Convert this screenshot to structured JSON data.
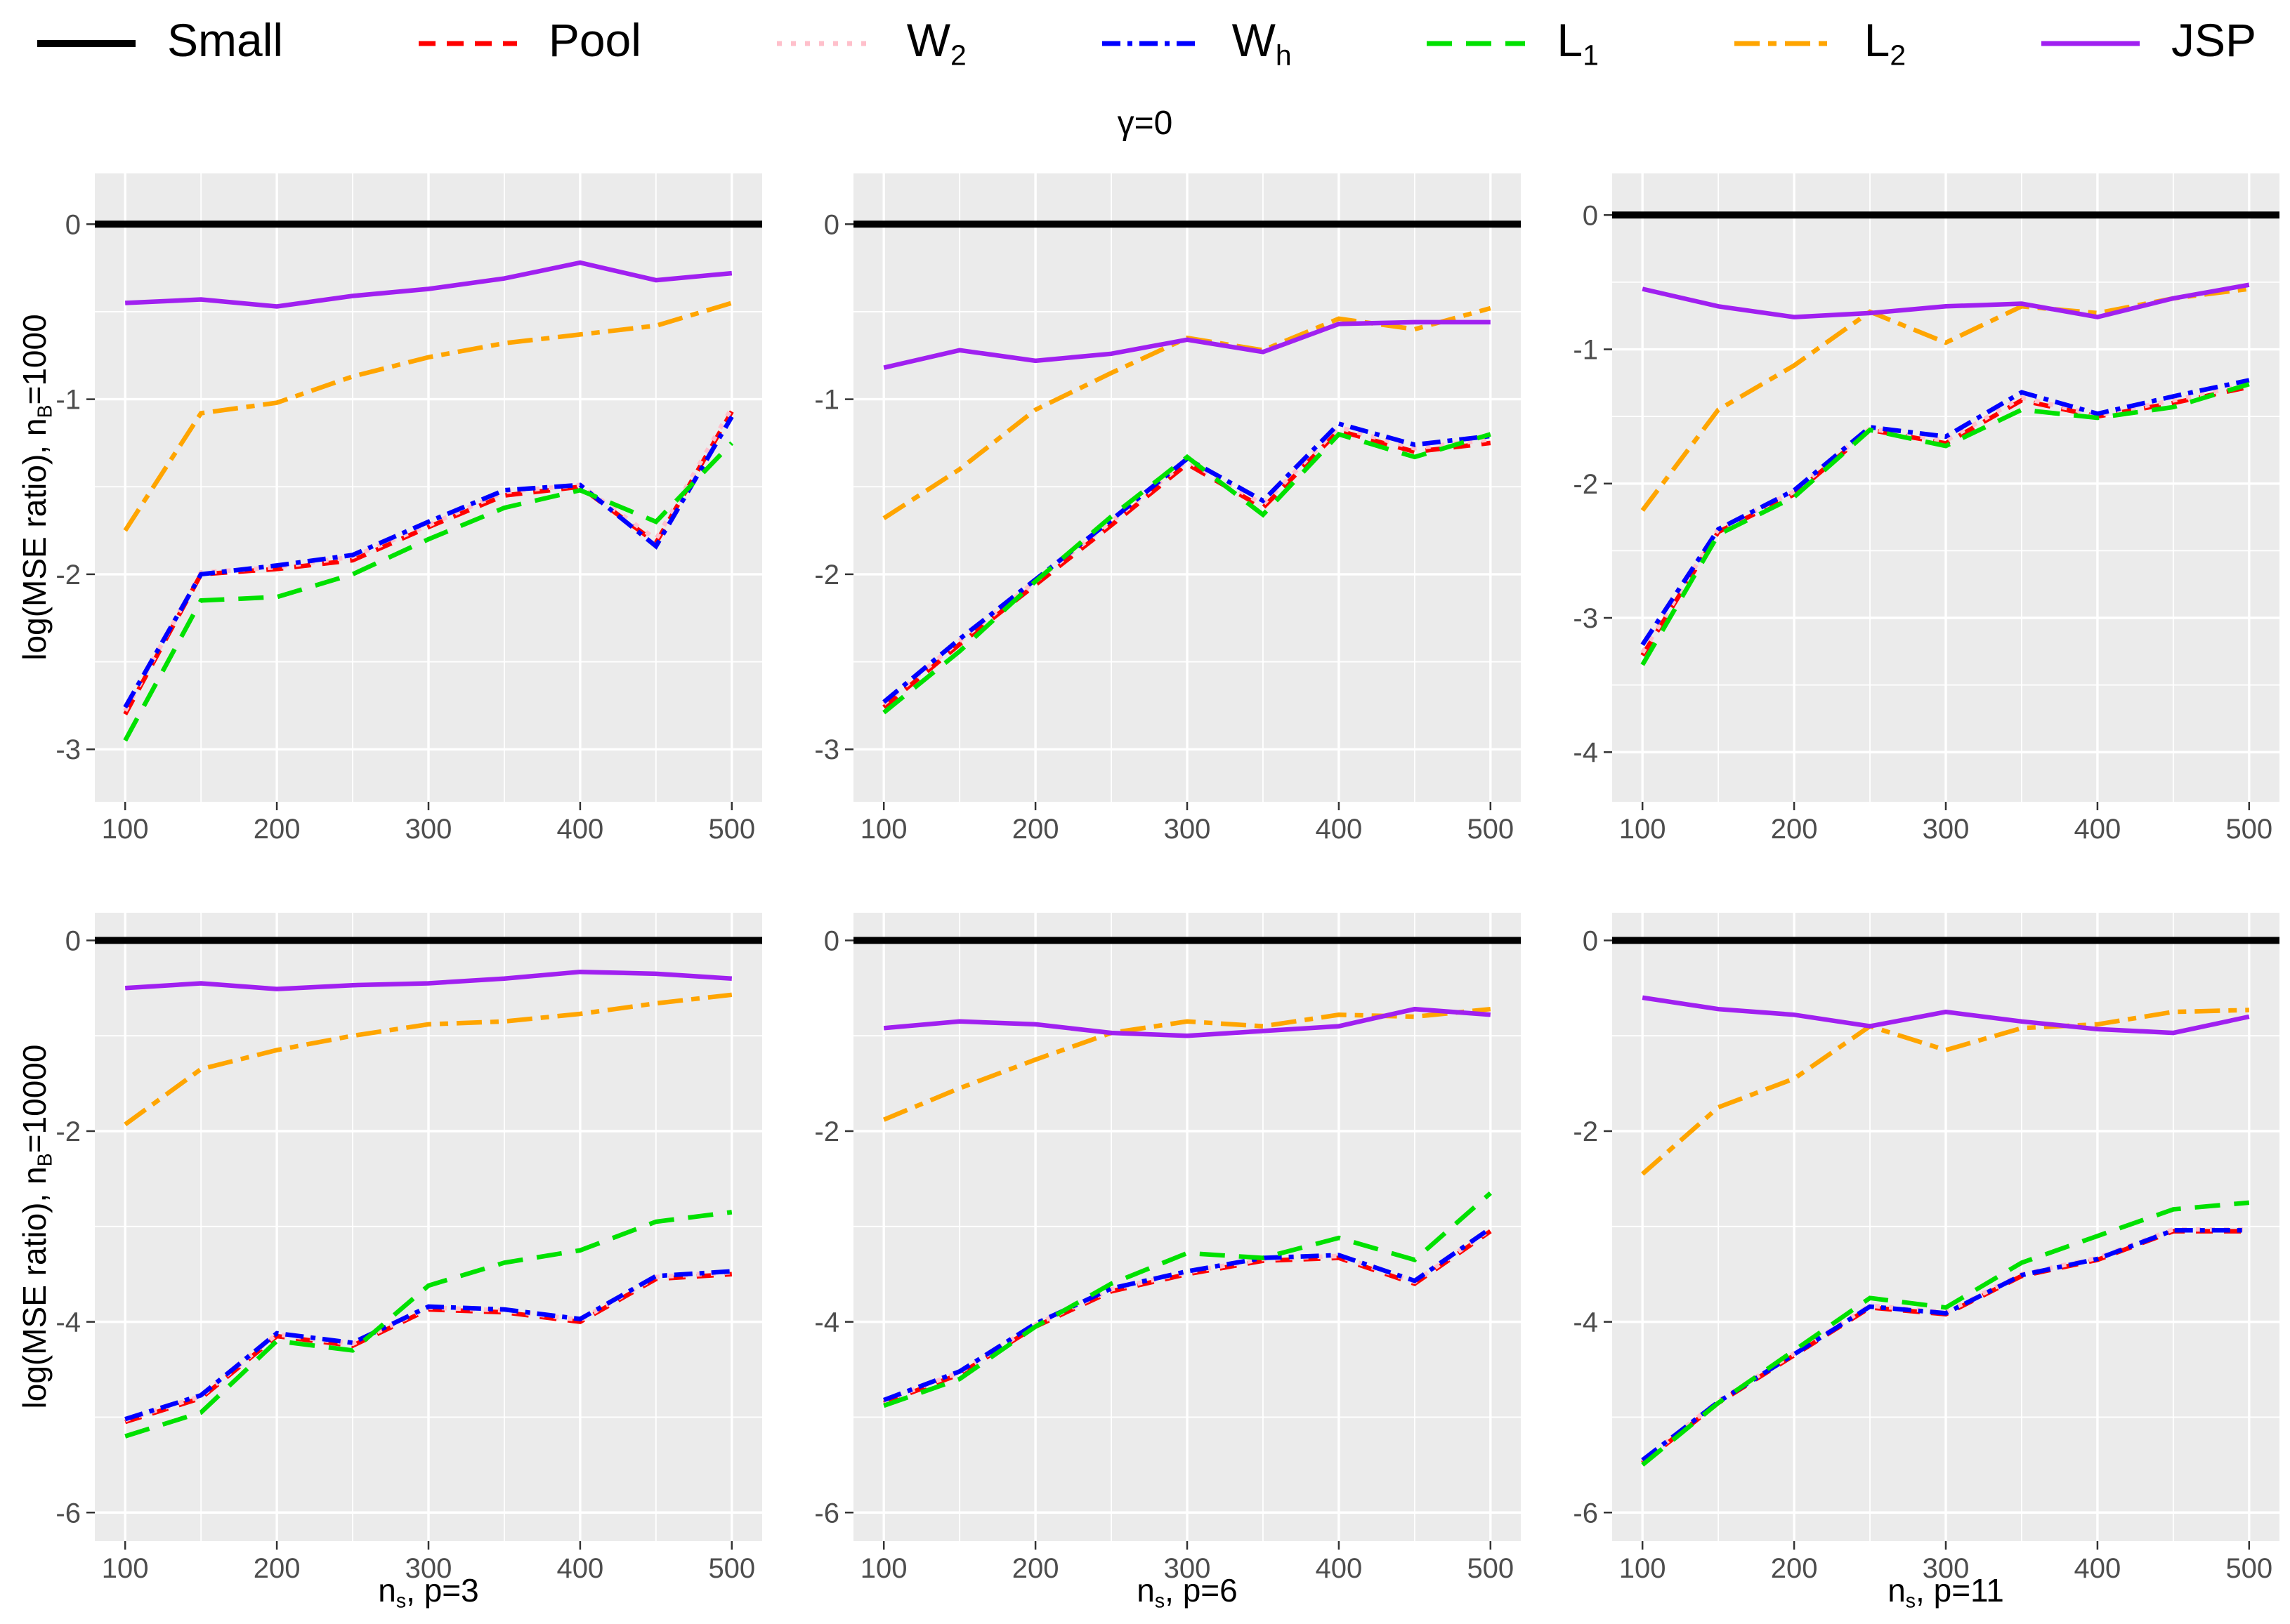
{
  "title": {
    "text": "γ=0"
  },
  "legend": {
    "items": [
      {
        "name": "Small",
        "label_main": "Small",
        "label_sub": "",
        "color": "#000000",
        "dash": "",
        "key_width": 10
      },
      {
        "name": "Pool",
        "label_main": "Pool",
        "label_sub": "",
        "color": "#FF0000",
        "dash": "24,16",
        "key_width": 7
      },
      {
        "name": "W2",
        "label_main": "W",
        "label_sub": "2",
        "color": "#FFC0CB",
        "dash": "7,13",
        "key_width": 7
      },
      {
        "name": "Wh",
        "label_main": "W",
        "label_sub": "h",
        "color": "#0000FF",
        "dash": "26,10,7,10",
        "key_width": 7
      },
      {
        "name": "L1",
        "label_main": "L",
        "label_sub": "1",
        "color": "#00E100",
        "dash": "36,20",
        "key_width": 7
      },
      {
        "name": "L2",
        "label_main": "L",
        "label_sub": "2",
        "color": "#FFA500",
        "dash": "36,12,12,12",
        "key_width": 7
      },
      {
        "name": "JSP",
        "label_main": "JSP",
        "label_sub": "",
        "color": "#A020F0",
        "dash": "",
        "key_width": 7
      }
    ]
  },
  "axes": {
    "row_titles": [
      {
        "prefix": "log(MSE ratio), n",
        "sub": "B",
        "suffix": "=1000"
      },
      {
        "prefix": "log(MSE ratio), n",
        "sub": "B",
        "suffix": "=10000"
      }
    ],
    "col_titles": [
      {
        "prefix": "n",
        "sub": "s",
        "suffix": ", p=3"
      },
      {
        "prefix": "n",
        "sub": "s",
        "suffix": ", p=6"
      },
      {
        "prefix": "n",
        "sub": "s",
        "suffix": ", p=11"
      }
    ]
  },
  "chart_data": {
    "type": "line",
    "x": [
      100,
      150,
      200,
      250,
      300,
      350,
      400,
      450,
      500
    ],
    "xlim": [
      80,
      520
    ],
    "xticks": [
      100,
      200,
      300,
      400,
      500
    ],
    "xminor": [
      150,
      250,
      350,
      450
    ],
    "series_styles": [
      {
        "name": "Small",
        "color": "#000000",
        "width": 10,
        "dash": "",
        "hline": true
      },
      {
        "name": "Pool",
        "color": "#FF0000",
        "width": 6.5,
        "dash": "24,16"
      },
      {
        "name": "W2",
        "color": "#FFC0CB",
        "width": 6.5,
        "dash": "7,13"
      },
      {
        "name": "Wh",
        "color": "#0000FF",
        "width": 6.5,
        "dash": "26,10,7,10"
      },
      {
        "name": "L1",
        "color": "#00E100",
        "width": 6.5,
        "dash": "36,20"
      },
      {
        "name": "L2",
        "color": "#FFA500",
        "width": 6.5,
        "dash": "36,12,12,12"
      },
      {
        "name": "JSP",
        "color": "#A020F0",
        "width": 6.5,
        "dash": ""
      }
    ],
    "facets": [
      {
        "row": 0,
        "col": 0,
        "facet_label": "p=3, nB=1000",
        "ylim": [
          0.29,
          -3.3
        ],
        "yticks": [
          0,
          -1,
          -2,
          -3
        ],
        "yminor": [
          -0.5,
          -1.5,
          -2.5
        ],
        "series": {
          "Small": [
            0,
            0,
            0,
            0,
            0,
            0,
            0,
            0,
            0
          ],
          "Pool": [
            -2.8,
            -2.0,
            -1.97,
            -1.92,
            -1.73,
            -1.55,
            -1.5,
            -1.82,
            -1.07
          ],
          "W2": [
            -2.78,
            -1.99,
            -1.96,
            -1.9,
            -1.72,
            -1.53,
            -1.49,
            -1.8,
            -1.05
          ],
          "Wh": [
            -2.76,
            -2.0,
            -1.95,
            -1.89,
            -1.7,
            -1.52,
            -1.49,
            -1.84,
            -1.1
          ],
          "L1": [
            -2.95,
            -2.15,
            -2.13,
            -2.0,
            -1.8,
            -1.62,
            -1.52,
            -1.7,
            -1.25
          ],
          "L2": [
            -1.75,
            -1.08,
            -1.02,
            -0.87,
            -0.76,
            -0.68,
            -0.63,
            -0.58,
            -0.45
          ],
          "JSP": [
            -0.45,
            -0.43,
            -0.47,
            -0.41,
            -0.37,
            -0.31,
            -0.22,
            -0.32,
            -0.28
          ]
        }
      },
      {
        "row": 0,
        "col": 1,
        "facet_label": "p=6, nB=1000",
        "ylim": [
          0.29,
          -3.3
        ],
        "yticks": [
          0,
          -1,
          -2,
          -3
        ],
        "yminor": [
          -0.5,
          -1.5,
          -2.5
        ],
        "series": {
          "Small": [
            0,
            0,
            0,
            0,
            0,
            0,
            0,
            0,
            0
          ],
          "Pool": [
            -2.76,
            -2.4,
            -2.06,
            -1.72,
            -1.37,
            -1.62,
            -1.18,
            -1.3,
            -1.25
          ],
          "W2": [
            -2.74,
            -2.38,
            -2.04,
            -1.7,
            -1.35,
            -1.6,
            -1.16,
            -1.28,
            -1.23
          ],
          "Wh": [
            -2.73,
            -2.37,
            -2.03,
            -1.69,
            -1.34,
            -1.58,
            -1.14,
            -1.26,
            -1.21
          ],
          "L1": [
            -2.79,
            -2.44,
            -2.04,
            -1.67,
            -1.33,
            -1.66,
            -1.2,
            -1.33,
            -1.2
          ],
          "L2": [
            -1.68,
            -1.4,
            -1.06,
            -0.85,
            -0.65,
            -0.72,
            -0.54,
            -0.6,
            -0.48
          ],
          "JSP": [
            -0.82,
            -0.72,
            -0.78,
            -0.74,
            -0.66,
            -0.73,
            -0.57,
            -0.56,
            -0.56
          ]
        }
      },
      {
        "row": 0,
        "col": 2,
        "facet_label": "p=11, nB=1000",
        "ylim": [
          0.31,
          -4.37
        ],
        "yticks": [
          0,
          -1,
          -2,
          -3,
          -4
        ],
        "yminor": [
          -0.5,
          -1.5,
          -2.5,
          -3.5
        ],
        "series": {
          "Small": [
            0,
            0,
            0,
            0,
            0,
            0,
            0,
            0,
            0
          ],
          "Pool": [
            -3.28,
            -2.36,
            -2.08,
            -1.6,
            -1.7,
            -1.38,
            -1.5,
            -1.4,
            -1.28
          ],
          "W2": [
            -3.26,
            -2.34,
            -2.06,
            -1.59,
            -1.68,
            -1.36,
            -1.49,
            -1.38,
            -1.26
          ],
          "Wh": [
            -3.2,
            -2.34,
            -2.05,
            -1.58,
            -1.65,
            -1.32,
            -1.48,
            -1.35,
            -1.23
          ],
          "L1": [
            -3.35,
            -2.38,
            -2.1,
            -1.6,
            -1.72,
            -1.45,
            -1.51,
            -1.43,
            -1.26
          ],
          "L2": [
            -2.2,
            -1.45,
            -1.12,
            -0.72,
            -0.95,
            -0.68,
            -0.73,
            -0.62,
            -0.55
          ],
          "JSP": [
            -0.55,
            -0.68,
            -0.76,
            -0.73,
            -0.68,
            -0.66,
            -0.76,
            -0.62,
            -0.52
          ]
        }
      },
      {
        "row": 1,
        "col": 0,
        "facet_label": "p=3, nB=10000",
        "ylim": [
          0.29,
          -6.3
        ],
        "yticks": [
          0,
          -2,
          -4,
          -6
        ],
        "yminor": [
          -1,
          -3,
          -5
        ],
        "series": {
          "Small": [
            0,
            0,
            0,
            0,
            0,
            0,
            0,
            0,
            0
          ],
          "Pool": [
            -5.05,
            -4.8,
            -4.15,
            -4.25,
            -3.87,
            -3.9,
            -4.0,
            -3.55,
            -3.5
          ],
          "W2": [
            -5.03,
            -4.78,
            -4.13,
            -4.23,
            -3.85,
            -3.88,
            -3.98,
            -3.53,
            -3.48
          ],
          "Wh": [
            -5.02,
            -4.77,
            -4.12,
            -4.22,
            -3.84,
            -3.87,
            -3.97,
            -3.52,
            -3.47
          ],
          "L1": [
            -5.2,
            -4.95,
            -4.2,
            -4.3,
            -3.62,
            -3.38,
            -3.25,
            -2.95,
            -2.85
          ],
          "L2": [
            -1.93,
            -1.35,
            -1.15,
            -1.0,
            -0.88,
            -0.85,
            -0.77,
            -0.66,
            -0.57
          ],
          "JSP": [
            -0.5,
            -0.45,
            -0.51,
            -0.47,
            -0.45,
            -0.4,
            -0.33,
            -0.35,
            -0.4
          ]
        }
      },
      {
        "row": 1,
        "col": 1,
        "facet_label": "p=6, nB=10000",
        "ylim": [
          0.29,
          -6.3
        ],
        "yticks": [
          0,
          -2,
          -4,
          -6
        ],
        "yminor": [
          -1,
          -3,
          -5
        ],
        "series": {
          "Small": [
            0,
            0,
            0,
            0,
            0,
            0,
            0,
            0,
            0
          ],
          "Pool": [
            -4.85,
            -4.55,
            -4.05,
            -3.68,
            -3.5,
            -3.36,
            -3.33,
            -3.6,
            -3.05
          ],
          "W2": [
            -4.83,
            -4.53,
            -4.03,
            -3.66,
            -3.48,
            -3.34,
            -3.31,
            -3.58,
            -3.03
          ],
          "Wh": [
            -4.82,
            -4.52,
            -4.02,
            -3.65,
            -3.47,
            -3.33,
            -3.3,
            -3.57,
            -3.02
          ],
          "L1": [
            -4.88,
            -4.6,
            -4.05,
            -3.6,
            -3.28,
            -3.33,
            -3.12,
            -3.35,
            -2.65
          ],
          "L2": [
            -1.88,
            -1.55,
            -1.25,
            -0.97,
            -0.85,
            -0.9,
            -0.78,
            -0.8,
            -0.72
          ],
          "JSP": [
            -0.92,
            -0.85,
            -0.88,
            -0.97,
            -1.0,
            -0.95,
            -0.9,
            -0.72,
            -0.78
          ]
        }
      },
      {
        "row": 1,
        "col": 2,
        "facet_label": "p=11, nB=10000",
        "ylim": [
          0.29,
          -6.3
        ],
        "yticks": [
          0,
          -2,
          -4,
          -6
        ],
        "yminor": [
          -1,
          -3,
          -5
        ],
        "series": {
          "Small": [
            0,
            0,
            0,
            0,
            0,
            0,
            0,
            0,
            0
          ],
          "Pool": [
            -5.48,
            -4.85,
            -4.35,
            -3.85,
            -3.92,
            -3.52,
            -3.35,
            -3.05,
            -3.05
          ],
          "W2": [
            -5.46,
            -4.83,
            -4.33,
            -3.83,
            -3.9,
            -3.5,
            -3.33,
            -3.03,
            -3.03
          ],
          "Wh": [
            -5.45,
            -4.84,
            -4.34,
            -3.84,
            -3.91,
            -3.51,
            -3.34,
            -3.04,
            -3.04
          ],
          "L1": [
            -5.5,
            -4.85,
            -4.3,
            -3.75,
            -3.85,
            -3.38,
            -3.1,
            -2.82,
            -2.75
          ],
          "L2": [
            -2.45,
            -1.75,
            -1.45,
            -0.9,
            -1.15,
            -0.92,
            -0.88,
            -0.75,
            -0.73
          ],
          "JSP": [
            -0.6,
            -0.72,
            -0.78,
            -0.9,
            -0.75,
            -0.85,
            -0.93,
            -0.97,
            -0.8
          ]
        }
      }
    ],
    "panel_bg": "#EBEBEB",
    "grid_color": "#FFFFFF",
    "tick_color": "#333333",
    "tick_label_color": "#4d4d4d"
  }
}
